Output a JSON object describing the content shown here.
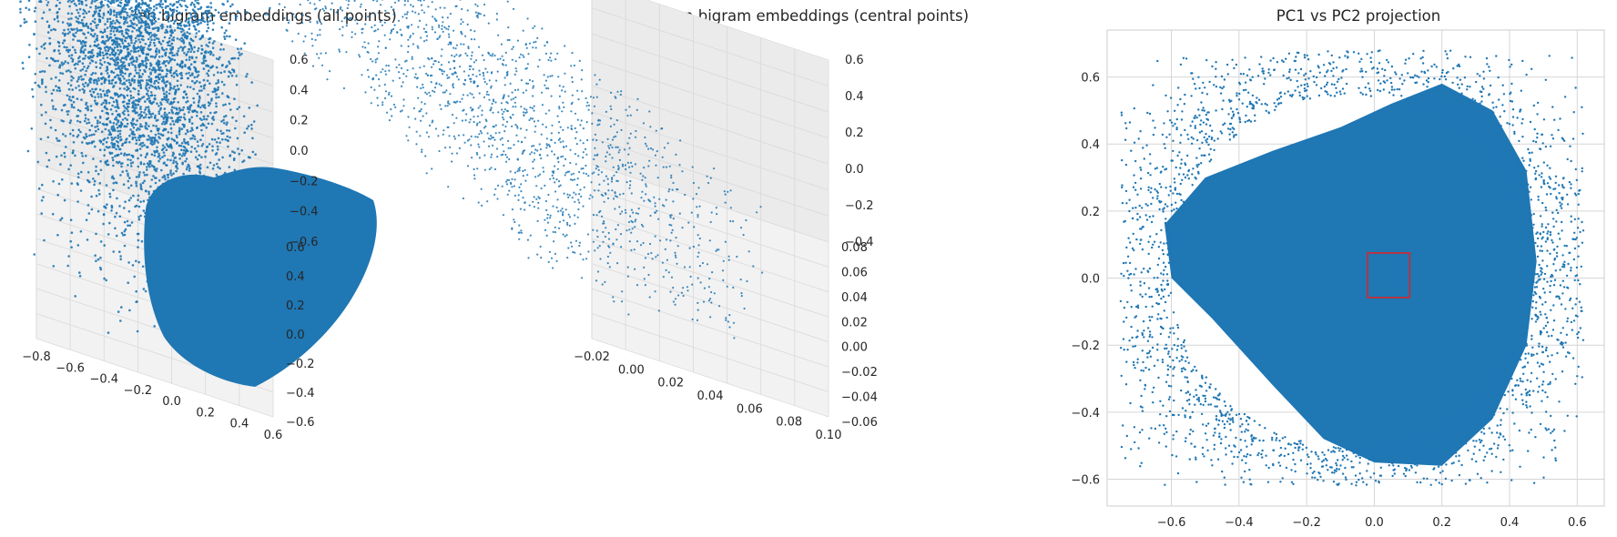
{
  "chart_data": [
    {
      "type": "scatter",
      "projection": "3d",
      "title": "Russian bigram embeddings (all points)",
      "x_ticks": [
        "−0.8",
        "−0.6",
        "−0.4",
        "−0.2",
        "0.0",
        "0.2",
        "0.4",
        "0.6"
      ],
      "y_ticks": [
        "−0.6",
        "−0.4",
        "−0.2",
        "0.0",
        "0.2",
        "0.4",
        "0.6"
      ],
      "z_ticks": [
        "−0.6",
        "−0.4",
        "−0.2",
        "0.0",
        "0.2",
        "0.4",
        "0.6"
      ],
      "xlim": [
        -0.85,
        0.7
      ],
      "ylim": [
        -0.7,
        0.7
      ],
      "zlim": [
        -0.7,
        0.7
      ],
      "series": [
        {
          "color": "#1f77b4",
          "marker_size": 2,
          "distribution": "dense heart-shaped cloud",
          "x_range": [
            -0.75,
            0.65
          ],
          "y_range": [
            -0.65,
            0.65
          ],
          "z_range": [
            -0.65,
            0.65
          ]
        }
      ],
      "grid": true
    },
    {
      "type": "scatter",
      "projection": "3d",
      "title": "Russian bigram embeddings (central points)",
      "x_ticks": [
        "−0.02",
        "0.00",
        "0.02",
        "0.04",
        "0.06",
        "0.08",
        "0.10"
      ],
      "y_ticks": [
        "−0.06",
        "−0.04",
        "−0.02",
        "0.00",
        "0.02",
        "0.04",
        "0.06",
        "0.08"
      ],
      "z_ticks": [
        "−0.4",
        "−0.2",
        "0.0",
        "0.2",
        "0.4",
        "0.6"
      ],
      "xlim": [
        -0.03,
        0.11
      ],
      "ylim": [
        -0.065,
        0.085
      ],
      "zlim": [
        -0.5,
        0.7
      ],
      "series": [
        {
          "color": "#1f77b4",
          "marker_size": 2,
          "distribution": "sparse uniform box of points",
          "x_range": [
            -0.02,
            0.1
          ],
          "y_range": [
            -0.06,
            0.08
          ],
          "z_range": [
            -0.45,
            0.65
          ]
        }
      ],
      "grid": true
    },
    {
      "type": "scatter",
      "title": "PC1 vs PC2 projection",
      "x_ticks": [
        "−0.6",
        "−0.4",
        "−0.2",
        "0.0",
        "0.2",
        "0.4",
        "0.6"
      ],
      "y_ticks": [
        "−0.6",
        "−0.4",
        "−0.2",
        "0.0",
        "0.2",
        "0.4",
        "0.6"
      ],
      "xlim": [
        -0.79,
        0.68
      ],
      "ylim": [
        -0.68,
        0.74
      ],
      "series": [
        {
          "color": "#1f77b4",
          "marker_size": 2,
          "distribution": "dense cloud",
          "x_range": [
            -0.75,
            0.62
          ],
          "y_range": [
            -0.62,
            0.68
          ]
        }
      ],
      "highlight_box": {
        "color": "#d62728",
        "x": [
          -0.02,
          0.105
        ],
        "y": [
          -0.058,
          0.075
        ]
      },
      "grid": true
    }
  ]
}
